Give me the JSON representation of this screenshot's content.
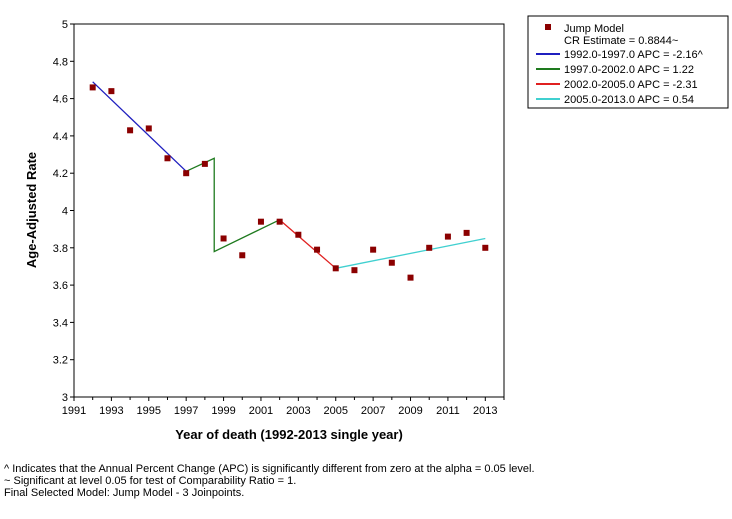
{
  "chart_data": {
    "type": "scatter",
    "xlabel": "Year of death (1992-2013 single year)",
    "ylabel": "Age-Adjusted Rate",
    "xlim": [
      1991,
      2014
    ],
    "ylim": [
      3,
      5
    ],
    "x_ticks": [
      "1991",
      "1993",
      "1995",
      "1997",
      "1999",
      "2001",
      "2003",
      "2005",
      "2007",
      "2009",
      "2011",
      "2013"
    ],
    "y_ticks": [
      "3",
      "3.2",
      "3.4",
      "3.6",
      "3.8",
      "4",
      "4.2",
      "4.4",
      "4.6",
      "4.8",
      "5"
    ],
    "observed": {
      "name": "Jump Model",
      "color": "#8b0000",
      "x": [
        1992,
        1993,
        1994,
        1995,
        1996,
        1997,
        1998,
        1999,
        2000,
        2001,
        2002,
        2003,
        2004,
        2005,
        2006,
        2007,
        2008,
        2009,
        2010,
        2011,
        2012,
        2013
      ],
      "y": [
        4.66,
        4.64,
        4.43,
        4.44,
        4.28,
        4.2,
        4.25,
        3.85,
        3.76,
        3.94,
        3.94,
        3.87,
        3.79,
        3.69,
        3.68,
        3.79,
        3.72,
        3.64,
        3.8,
        3.86,
        3.88,
        3.8
      ]
    },
    "segments": [
      {
        "name": "1992.0-1997.0 APC  = -2.16^",
        "color": "#1f1fbf",
        "x": [
          1992,
          1997.0
        ],
        "y": [
          4.69,
          4.21
        ]
      },
      {
        "name": "1997.0-2002.0 APC  = 1.22",
        "color": "#1e7a1e",
        "x": [
          1997.0,
          1998.5,
          1998.5,
          2002.0
        ],
        "y": [
          4.21,
          4.28,
          3.78,
          3.95
        ]
      },
      {
        "name": "2002.0-2005.0 APC  = -2.31",
        "color": "#e02020",
        "x": [
          2002.0,
          2005.0
        ],
        "y": [
          3.95,
          3.69
        ]
      },
      {
        "name": "2005.0-2013.0 APC  =  0.54",
        "color": "#40d0d0",
        "x": [
          2005.0,
          2013
        ],
        "y": [
          3.69,
          3.85
        ]
      }
    ],
    "legend": {
      "title": "Jump Model",
      "cr_estimate": "CR Estimate = 0.8844~"
    }
  },
  "footnotes": {
    "line1": "^ Indicates that the Annual Percent Change (APC) is significantly different from zero at the alpha = 0.05 level.",
    "line2": "~ Significant at level 0.05 for test of Comparability Ratio = 1.",
    "line3": "Final Selected Model: Jump Model - 3 Joinpoints."
  }
}
